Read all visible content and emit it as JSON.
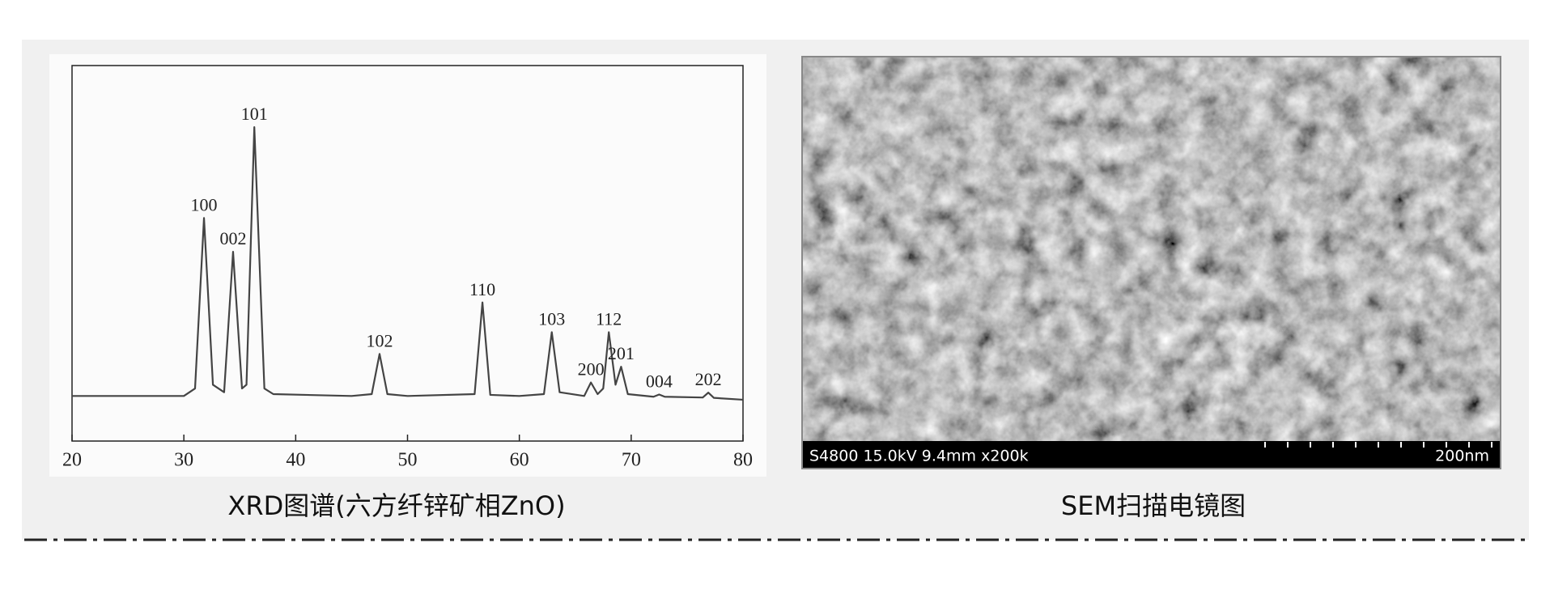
{
  "chart_data": {
    "type": "line",
    "x": [
      20,
      30,
      31,
      31.8,
      32.6,
      33.6,
      34.4,
      35.2,
      35.6,
      36.3,
      37.2,
      38,
      45,
      46.8,
      47.5,
      48.2,
      50,
      56,
      56.7,
      57.4,
      60,
      62.2,
      62.9,
      63.6,
      65.8,
      66.4,
      67,
      67.5,
      68,
      68.6,
      69.1,
      69.7,
      72,
      72.5,
      73,
      76.4,
      76.9,
      77.4,
      80
    ],
    "values": [
      12,
      12,
      14,
      59.4,
      15,
      13,
      50.4,
      14,
      15,
      83.6,
      14,
      12.5,
      12,
      12.5,
      23.2,
      12.5,
      12,
      12.5,
      36.9,
      12.3,
      12,
      12.5,
      29,
      13,
      12,
      15.6,
      12.5,
      14,
      29,
      15,
      19.8,
      12.5,
      11.8,
      12.4,
      11.8,
      11.6,
      12.9,
      11.5,
      11
    ],
    "color": "#444444",
    "xlim": [
      20,
      80
    ],
    "xticks": [
      20,
      30,
      40,
      50,
      60,
      70,
      80
    ],
    "ylim": [
      0,
      100
    ],
    "annotations": [
      {
        "text": "100",
        "x": 31.8,
        "y": 59.4
      },
      {
        "text": "002",
        "x": 34.4,
        "y": 50.4
      },
      {
        "text": "101",
        "x": 36.3,
        "y": 83.6
      },
      {
        "text": "102",
        "x": 47.5,
        "y": 23.2
      },
      {
        "text": "110",
        "x": 56.7,
        "y": 36.9
      },
      {
        "text": "103",
        "x": 62.9,
        "y": 29
      },
      {
        "text": "200",
        "x": 66.4,
        "y": 15.6
      },
      {
        "text": "112",
        "x": 68,
        "y": 29
      },
      {
        "text": "201",
        "x": 69.1,
        "y": 19.8
      },
      {
        "text": "004",
        "x": 72.5,
        "y": 12.4
      },
      {
        "text": "202",
        "x": 76.9,
        "y": 12.9
      }
    ]
  },
  "captions": [
    "XRD图谱(六方纤锌矿相ZnO)",
    "SEM扫描电镜图"
  ],
  "sem": {
    "info": "S4800 15.0kV 9.4mm x200k",
    "scale_label": "200nm"
  }
}
